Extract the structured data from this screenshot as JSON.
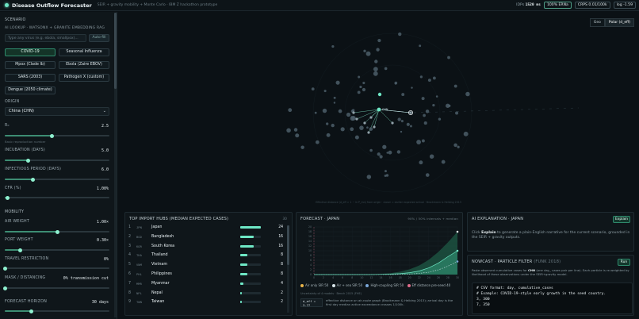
{
  "header": {
    "title": "Disease Outflow Forecaster",
    "subtitle": "SEIR + gravity mobility + Monte Carlo · IBM Z hackathon prototype",
    "stats": [
      {
        "label": "IDPs",
        "value": "1520 ms"
      },
      {
        "label": "100% ERNa",
        "value": ""
      },
      {
        "label": "CRPS 0.01/100k",
        "value": ""
      },
      {
        "label": "log -1.59",
        "value": ""
      }
    ]
  },
  "sidebar": {
    "scenario_label": "SCENARIO",
    "ai_lookup_label": "AI LOOKUP · WATSONX + GRANITE EMBEDDING RAG",
    "search_placeholder": "Type any virus (e.g. ebola, smallpox)...",
    "autofill_label": "Auto-fill",
    "presets": [
      "COVID-19",
      "Seasonal Influenza",
      "Mpox (Clade Ib)",
      "Ebola (Zaire EBOV)",
      "SARS (2003)",
      "Pathogen X (custom)",
      "Dengue (2050 climate)"
    ],
    "origin_label": "ORIGIN",
    "origin_value": "China (CHN)",
    "r0_label": "R₀",
    "r0_value": "2.5",
    "r0_hint": "Basic reproduction number",
    "r0_level": 0.45,
    "incubation_label": "INCUBATION (DAYS)",
    "incubation_value": "5.0",
    "incubation_level": 0.22,
    "infectious_label": "INFECTIOUS PERIOD (DAYS)",
    "infectious_value": "6.0",
    "infectious_level": 0.27,
    "cfr_label": "CFR (%)",
    "cfr_value": "1.00%",
    "cfr_level": 0.03,
    "mobility_label": "MOBILITY",
    "air_weight_label": "AIR WEIGHT",
    "air_weight_value": "1.00×",
    "air_weight_level": 0.5,
    "port_weight_label": "PORT WEIGHT",
    "port_weight_value": "0.30×",
    "port_weight_level": 0.15,
    "travel_label": "TRAVEL RESTRICTION",
    "travel_value": "0%",
    "travel_level": 0.0,
    "mask_label": "MASK / DISTANCING",
    "mask_value": "0% transmission cut",
    "mask_level": 0.0,
    "horizon_label": "FORECAST HORIZON",
    "horizon_value": "30 days",
    "horizon_level": 0.25
  },
  "map": {
    "toggle": [
      "Geo",
      "Polar (d_eff)"
    ],
    "origin_tag": "CHN",
    "footer": "Effective distance (d_eff = 1 − ln P_mn) from origin · closer = earlier expected arrival · Brockmann & Helbing 2013"
  },
  "hubs": {
    "title": "TOP IMPORT HUBS (MEDIAN EXPECTED CASES)",
    "count": "30",
    "rows": [
      {
        "rank": "1",
        "iso": "JPN",
        "name": "Japan",
        "value": "24",
        "frac": 1.0
      },
      {
        "rank": "2",
        "iso": "BGD",
        "name": "Bangladesh",
        "value": "16",
        "frac": 0.67
      },
      {
        "rank": "3",
        "iso": "KOR",
        "name": "South Korea",
        "value": "16",
        "frac": 0.67
      },
      {
        "rank": "4",
        "iso": "THA",
        "name": "Thailand",
        "value": "8",
        "frac": 0.33
      },
      {
        "rank": "5",
        "iso": "VNM",
        "name": "Vietnam",
        "value": "8",
        "frac": 0.33
      },
      {
        "rank": "6",
        "iso": "PHL",
        "name": "Philippines",
        "value": "8",
        "frac": 0.33
      },
      {
        "rank": "7",
        "iso": "MMR",
        "name": "Myanmar",
        "value": "4",
        "frac": 0.17
      },
      {
        "rank": "8",
        "iso": "NPL",
        "name": "Nepal",
        "value": "2",
        "frac": 0.08
      },
      {
        "rank": "9",
        "iso": "TWN",
        "name": "Taiwan",
        "value": "2",
        "frac": 0.08
      }
    ]
  },
  "forecast": {
    "title": "FORECAST · JAPAN",
    "legend_right": "90% / 50% intervals + median",
    "legend": [
      "Air only SIR 50",
      "Air + sea SIR 50",
      "High-coupling SIR 50",
      "Eff distance pre-seed 40"
    ],
    "note": "Uncertainty of 4 models · Bench 2015 (FHE)",
    "deff": "d_eff = 3.77",
    "para": "effective distance on air-route graph (Brockmann & Helbing 2013); arrival day is the first day median active exceedance crosses 1/100k.",
    "chart_data": {
      "type": "area",
      "x": [
        0,
        2,
        4,
        6,
        8,
        10,
        12,
        14,
        16,
        18,
        20,
        22,
        24,
        26,
        28,
        30
      ],
      "xlabel": "",
      "ylabel": "",
      "ylim": [
        0,
        20
      ],
      "series": [
        {
          "values": [
            0,
            0,
            0,
            0,
            0,
            0,
            0,
            0.1,
            0.2,
            0.4,
            0.8,
            1.5,
            2.8,
            4.8,
            7.5,
            10
          ]
        },
        {
          "values": [
            0,
            0,
            0,
            0,
            0,
            0,
            0.1,
            0.3,
            0.6,
            1.2,
            2.2,
            3.8,
            6.2,
            9.5,
            13.5,
            18
          ]
        },
        {
          "values": [
            0,
            0,
            0,
            0,
            0,
            0,
            0,
            0,
            0,
            0.1,
            0.2,
            0.5,
            1.0,
            2.0,
            3.5,
            5.5
          ]
        }
      ],
      "y_ticks": [
        "20",
        "18",
        "16",
        "14",
        "12",
        "10",
        "8",
        "6",
        "4",
        "2",
        "0"
      ],
      "x_ticks": [
        "0",
        "2",
        "4",
        "6",
        "8",
        "10",
        "12",
        "14",
        "16",
        "18",
        "20",
        "22",
        "24",
        "26",
        "28",
        "30"
      ]
    }
  },
  "ai": {
    "title": "AI EXPLANATION · JAPAN",
    "button": "Explain",
    "text_pre": "Click",
    "text_link": "Explain",
    "text_post": "to generate a plain-English narrative for the current scenario, grounded in the SEIR + gravity outputs."
  },
  "nowcast": {
    "title": "NOWCAST · PARTICLE FILTER",
    "subtitle": "(FUNK 2018)",
    "button": "Run",
    "para_pre": "Paste observed cumulative cases for",
    "para_iso": "CHN",
    "para_post": "(one day_ cases pair per line). Each particle is re-weighted by likelihood of these observations under the SEIR+gravity model.",
    "code": [
      "# CSV format: day, cumulative_cases",
      "# Example: COVID-19-style early growth in the seed country.",
      "3, 300",
      "7, 350"
    ]
  }
}
